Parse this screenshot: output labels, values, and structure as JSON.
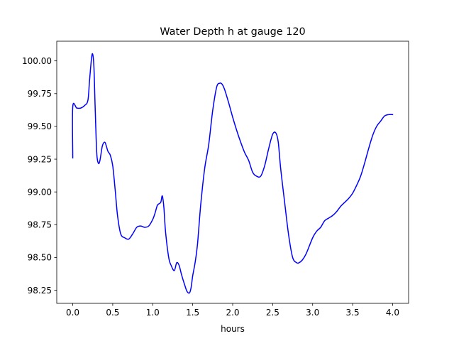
{
  "chart_data": {
    "type": "line",
    "title": "Water Depth h at gauge 120",
    "xlabel": "hours",
    "ylabel": "",
    "xlim": [
      -0.2,
      4.2
    ],
    "ylim": [
      98.15,
      100.15
    ],
    "grid": false,
    "line_color": "#0000ff",
    "x_ticks": [
      0.0,
      0.5,
      1.0,
      1.5,
      2.0,
      2.5,
      3.0,
      3.5,
      4.0
    ],
    "x_tick_labels": [
      "0.0",
      "0.5",
      "1.0",
      "1.5",
      "2.0",
      "2.5",
      "3.0",
      "3.5",
      "4.0"
    ],
    "y_ticks": [
      98.25,
      98.5,
      98.75,
      99.0,
      99.25,
      99.5,
      99.75,
      100.0
    ],
    "y_tick_labels": [
      "98.25",
      "98.50",
      "98.75",
      "99.00",
      "99.25",
      "99.50",
      "99.75",
      "100.00"
    ],
    "series": [
      {
        "x": [
          0.0,
          0.0,
          0.05,
          0.1,
          0.15,
          0.19,
          0.21,
          0.235,
          0.25,
          0.265,
          0.28,
          0.3,
          0.32,
          0.34,
          0.37,
          0.4,
          0.42,
          0.44,
          0.47,
          0.5,
          0.53,
          0.56,
          0.6,
          0.65,
          0.7,
          0.75,
          0.8,
          0.85,
          0.9,
          0.95,
          1.0,
          1.03,
          1.06,
          1.1,
          1.12,
          1.14,
          1.16,
          1.2,
          1.23,
          1.27,
          1.3,
          1.33,
          1.36,
          1.4,
          1.43,
          1.46,
          1.48,
          1.5,
          1.53,
          1.56,
          1.6,
          1.65,
          1.7,
          1.75,
          1.8,
          1.84,
          1.87,
          1.9,
          1.95,
          2.0,
          2.05,
          2.1,
          2.15,
          2.2,
          2.25,
          2.3,
          2.35,
          2.4,
          2.45,
          2.5,
          2.54,
          2.57,
          2.6,
          2.65,
          2.7,
          2.75,
          2.8,
          2.83,
          2.87,
          2.92,
          3.0,
          3.05,
          3.1,
          3.15,
          3.2,
          3.25,
          3.3,
          3.35,
          3.4,
          3.45,
          3.5,
          3.55,
          3.6,
          3.65,
          3.7,
          3.75,
          3.8,
          3.85,
          3.9,
          3.95,
          4.0
        ],
        "values": [
          99.26,
          99.65,
          99.64,
          99.64,
          99.66,
          99.7,
          99.85,
          100.02,
          100.05,
          99.95,
          99.65,
          99.3,
          99.22,
          99.24,
          99.35,
          99.38,
          99.35,
          99.31,
          99.28,
          99.2,
          99.02,
          98.82,
          98.68,
          98.65,
          98.64,
          98.68,
          98.73,
          98.74,
          98.73,
          98.74,
          98.79,
          98.84,
          98.9,
          98.92,
          98.97,
          98.88,
          98.7,
          98.5,
          98.44,
          98.4,
          98.46,
          98.44,
          98.37,
          98.29,
          98.24,
          98.23,
          98.27,
          98.36,
          98.46,
          98.6,
          98.9,
          99.18,
          99.36,
          99.62,
          99.8,
          99.83,
          99.82,
          99.78,
          99.68,
          99.57,
          99.47,
          99.38,
          99.3,
          99.24,
          99.15,
          99.12,
          99.12,
          99.2,
          99.33,
          99.44,
          99.45,
          99.38,
          99.18,
          98.92,
          98.67,
          98.5,
          98.46,
          98.46,
          98.48,
          98.53,
          98.65,
          98.7,
          98.73,
          98.78,
          98.8,
          98.82,
          98.85,
          98.89,
          98.92,
          98.95,
          98.99,
          99.05,
          99.12,
          99.22,
          99.33,
          99.43,
          99.5,
          99.54,
          99.58,
          99.59,
          99.59
        ]
      }
    ]
  }
}
